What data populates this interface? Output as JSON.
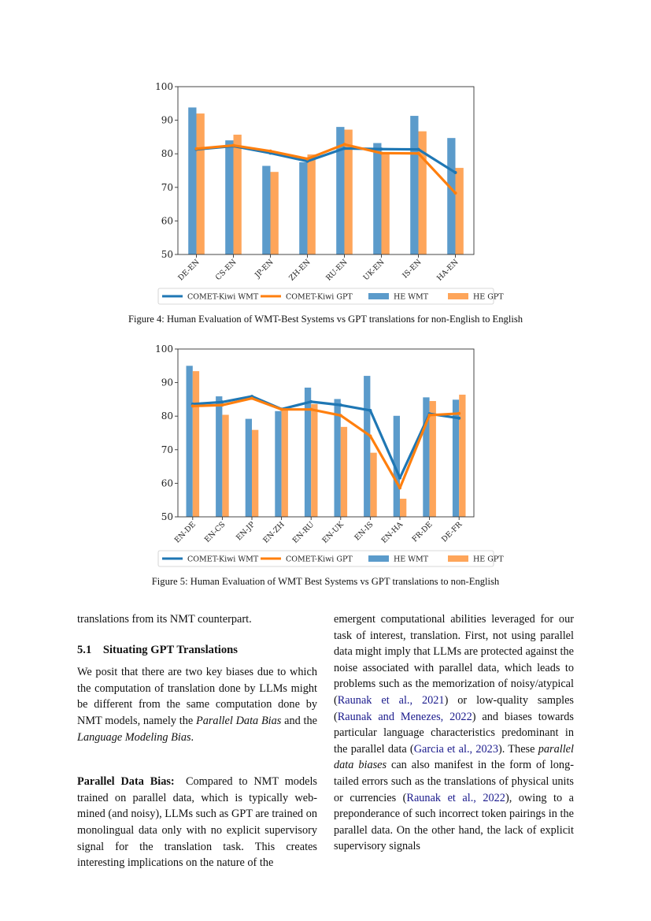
{
  "figures": [
    {
      "caption": "Figure 4: Human Evaluation of WMT-Best Systems vs GPT translations for non-English to English"
    },
    {
      "caption": "Figure 5: Human Evaluation of WMT Best Systems vs GPT translations to non-English"
    }
  ],
  "chart_data": [
    {
      "type": "bar",
      "categories": [
        "DE-EN",
        "CS-EN",
        "JP-EN",
        "ZH-EN",
        "RU-EN",
        "UK-EN",
        "IS-EN",
        "HA-EN"
      ],
      "ylim": [
        50,
        100
      ],
      "yticks": [
        50,
        60,
        70,
        80,
        90,
        100
      ],
      "grid": false,
      "legend_position": "bottom",
      "series": [
        {
          "name": "HE WMT",
          "kind": "bar",
          "color": "#5b9bcb",
          "values": [
            93.8,
            84.0,
            76.4,
            77.5,
            88.0,
            83.2,
            91.3,
            84.7
          ]
        },
        {
          "name": "HE GPT",
          "kind": "bar",
          "color": "#fea55a",
          "values": [
            92.0,
            85.7,
            74.6,
            79.8,
            87.2,
            80.2,
            86.7,
            75.8
          ]
        },
        {
          "name": "COMET-Kiwi WMT",
          "kind": "line",
          "color": "#1f77b4",
          "values": [
            81.3,
            82.3,
            80.2,
            77.8,
            81.6,
            81.4,
            81.3,
            74.4
          ]
        },
        {
          "name": "COMET-Kiwi GPT",
          "kind": "line",
          "color": "#ff7f0e",
          "values": [
            81.5,
            82.5,
            80.8,
            78.5,
            82.8,
            80.2,
            80.1,
            68.3
          ]
        }
      ],
      "legend_order": [
        "COMET-Kiwi WMT",
        "COMET-Kiwi GPT",
        "HE WMT",
        "HE GPT"
      ]
    },
    {
      "type": "bar",
      "categories": [
        "EN-DE",
        "EN-CS",
        "EN-JP",
        "EN-ZH",
        "EN-RU",
        "EN-UK",
        "EN-IS",
        "EN-HA",
        "FR-DE",
        "DE-FR"
      ],
      "ylim": [
        50,
        100
      ],
      "yticks": [
        50,
        60,
        70,
        80,
        90,
        100
      ],
      "grid": false,
      "legend_position": "bottom",
      "series": [
        {
          "name": "HE WMT",
          "kind": "bar",
          "color": "#5b9bcb",
          "values": [
            95.0,
            85.9,
            79.2,
            81.5,
            88.5,
            85.1,
            92.0,
            80.1,
            85.6,
            84.9
          ]
        },
        {
          "name": "HE GPT",
          "kind": "bar",
          "color": "#fea55a",
          "values": [
            93.4,
            80.4,
            75.9,
            82.0,
            83.6,
            76.8,
            69.1,
            55.4,
            84.5,
            86.4
          ]
        },
        {
          "name": "COMET-Kiwi WMT",
          "kind": "line",
          "color": "#1f77b4",
          "values": [
            83.6,
            84.2,
            85.9,
            82.1,
            84.3,
            83.3,
            81.7,
            61.6,
            80.7,
            79.4
          ]
        },
        {
          "name": "COMET-Kiwi GPT",
          "kind": "line",
          "color": "#ff7f0e",
          "values": [
            83.0,
            83.3,
            85.3,
            82.0,
            82.0,
            80.2,
            74.1,
            58.6,
            80.3,
            80.8
          ]
        }
      ],
      "legend_order": [
        "COMET-Kiwi WMT",
        "COMET-Kiwi GPT",
        "HE WMT",
        "HE GPT"
      ]
    }
  ],
  "left_column": {
    "intro": [
      {
        "t": "translations from its NMT counterpart."
      }
    ],
    "section_heading": "5.1 Situating GPT Translations",
    "para1": [
      {
        "t": "We posit that there are two key biases due to which the computation of translation done by LLMs might be different from the same computation done by NMT models, namely the "
      },
      {
        "t": "Parallel Data Bias",
        "s": "it"
      },
      {
        "t": " and the "
      },
      {
        "t": "Language Modeling Bias",
        "s": "it"
      },
      {
        "t": "."
      }
    ],
    "para2": [
      {
        "t": "Parallel Data Bias:",
        "s": "b"
      },
      {
        "t": " Compared to NMT models trained on parallel data, which is typically web-mined (and noisy), LLMs such as GPT are trained on monolingual data only with no explicit supervisory signal for the translation task.  This creates interesting implications on the nature of the"
      }
    ]
  },
  "right_column": {
    "para": [
      {
        "t": "emergent computational abilities leveraged for our task of interest, translation.  First, not using parallel data might imply that LLMs are protected against the noise associated with parallel data, which leads to problems such as the memorization of noisy/atypical ("
      },
      {
        "t": "Raunak et al., 2021",
        "s": "link"
      },
      {
        "t": ") or low-quality samples ("
      },
      {
        "t": "Raunak and Menezes, 2022",
        "s": "link"
      },
      {
        "t": ") and biases towards particular language characteristics predominant in the parallel data ("
      },
      {
        "t": "Garcia et al., 2023",
        "s": "link"
      },
      {
        "t": ").  These "
      },
      {
        "t": "parallel data biases",
        "s": "it"
      },
      {
        "t": " can also manifest in the form of long-tailed errors such as the translations of physical units or currencies ("
      },
      {
        "t": "Raunak et al., 2022",
        "s": "link"
      },
      {
        "t": "), owing to a preponderance of such incorrect token pairings in the parallel data. On the other hand, the lack of explicit supervisory signals"
      }
    ]
  }
}
